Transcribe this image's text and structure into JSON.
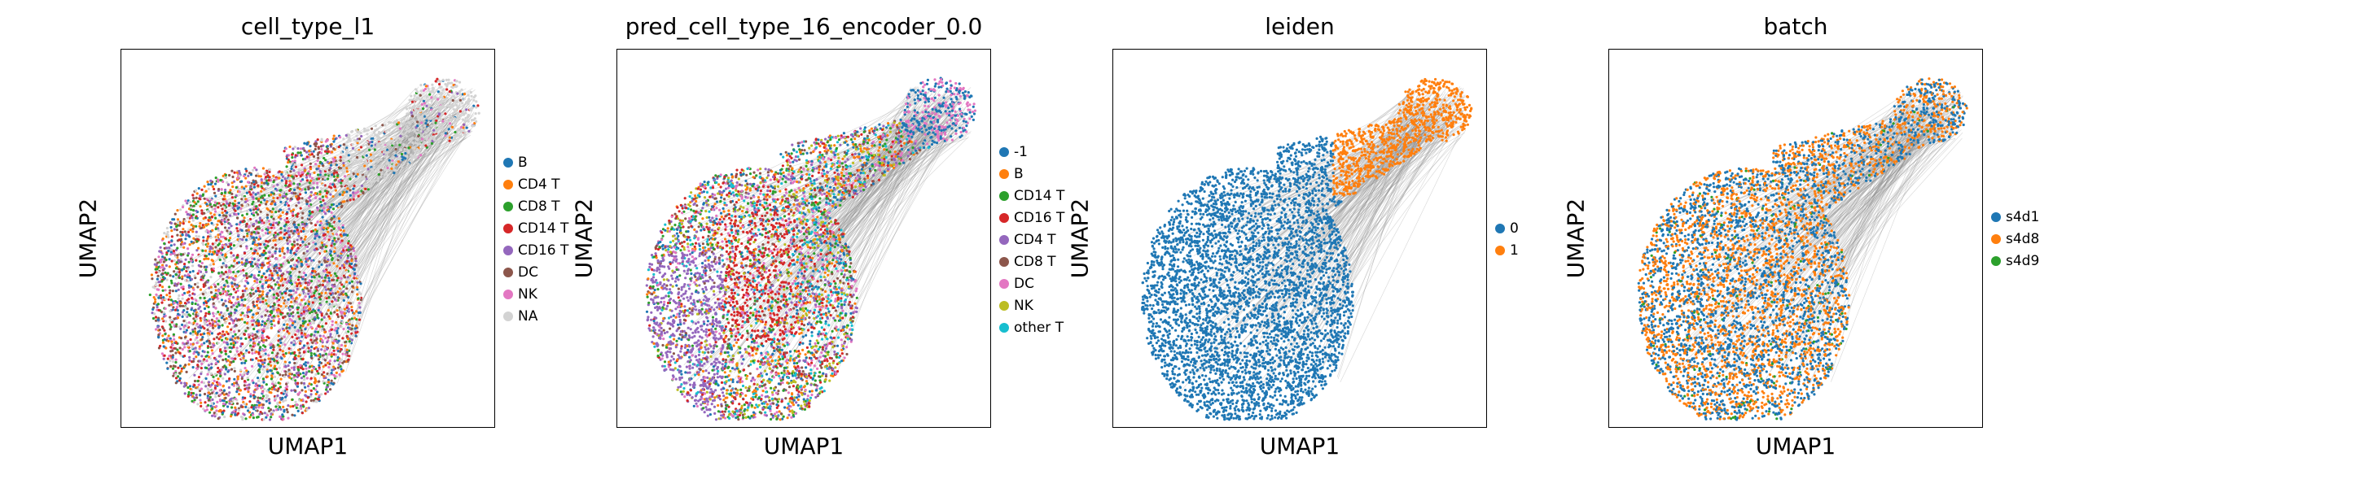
{
  "chart_data": [
    {
      "type": "scatter",
      "title": "cell_type_l1",
      "xlabel": "UMAP1",
      "ylabel": "UMAP2",
      "grid": false,
      "legend_placement": "right",
      "legend": [
        {
          "label": "B",
          "color": "#1f77b4"
        },
        {
          "label": "CD4 T",
          "color": "#ff7f0e"
        },
        {
          "label": "CD8 T",
          "color": "#2ca02c"
        },
        {
          "label": "CD14 T",
          "color": "#d62728"
        },
        {
          "label": "CD16 T",
          "color": "#9467bd"
        },
        {
          "label": "DC",
          "color": "#8c564b"
        },
        {
          "label": "NK",
          "color": "#e377c2"
        },
        {
          "label": "NA",
          "color": "#d3d3d3"
        }
      ]
    },
    {
      "type": "scatter",
      "title": "pred_cell_type_16_encoder_0.0",
      "xlabel": "UMAP1",
      "ylabel": "UMAP2",
      "grid": false,
      "legend_placement": "right",
      "legend": [
        {
          "label": "-1",
          "color": "#1f77b4"
        },
        {
          "label": "B",
          "color": "#ff7f0e"
        },
        {
          "label": "CD14 T",
          "color": "#2ca02c"
        },
        {
          "label": "CD16 T",
          "color": "#d62728"
        },
        {
          "label": "CD4 T",
          "color": "#9467bd"
        },
        {
          "label": "CD8 T",
          "color": "#8c564b"
        },
        {
          "label": "DC",
          "color": "#e377c2"
        },
        {
          "label": "NK",
          "color": "#bcbd22"
        },
        {
          "label": "other T",
          "color": "#17becf"
        }
      ]
    },
    {
      "type": "scatter",
      "title": "leiden",
      "xlabel": "UMAP1",
      "ylabel": "UMAP2",
      "grid": false,
      "legend_placement": "right",
      "legend": [
        {
          "label": "0",
          "color": "#1f77b4"
        },
        {
          "label": "1",
          "color": "#ff7f0e"
        }
      ]
    },
    {
      "type": "scatter",
      "title": "batch",
      "xlabel": "UMAP1",
      "ylabel": "UMAP2",
      "grid": false,
      "legend_placement": "right",
      "legend": [
        {
          "label": "s4d1",
          "color": "#1f77b4"
        },
        {
          "label": "s4d8",
          "color": "#ff7f0e"
        },
        {
          "label": "s4d9",
          "color": "#2ca02c"
        }
      ]
    }
  ]
}
